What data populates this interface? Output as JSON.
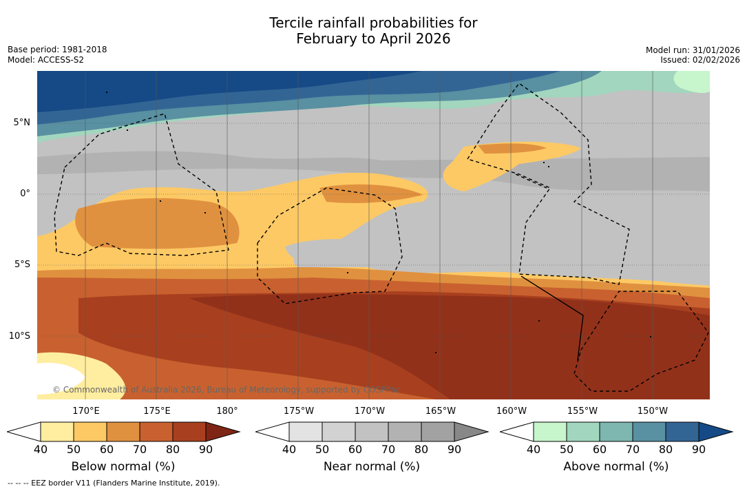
{
  "title": {
    "line1": "Tercile rainfall probabilities for",
    "line2": "February to April 2026"
  },
  "meta": {
    "base_period": "Base period: 1981-2018",
    "model": "Model: ACCESS-S2",
    "model_run": "Model run: 31/01/2026",
    "issued": "Issued: 02/02/2026"
  },
  "map": {
    "latitude_labels": [
      "5°N",
      "0°",
      "5°S",
      "10°S"
    ],
    "longitude_labels": [
      "170°E",
      "175°E",
      "180°",
      "175°W",
      "170°W",
      "165°W",
      "160°W",
      "155°W",
      "150°W"
    ],
    "copyright": "© Commonwealth of Australia 2026, Bureau of Meteorology, supported by COSPPac"
  },
  "colorbars": [
    {
      "title": "Below normal (%)",
      "ticks": [
        "40",
        "50",
        "60",
        "70",
        "80",
        "90"
      ],
      "colors": [
        "#ffeda0",
        "#fdc965",
        "#e0913f",
        "#c8612f",
        "#a8401f",
        "#7f2515"
      ]
    },
    {
      "title": "Near normal (%)",
      "ticks": [
        "40",
        "50",
        "60",
        "70",
        "80",
        "90"
      ],
      "colors": [
        "#e3e3e3",
        "#d2d2d2",
        "#c2c2c2",
        "#b2b2b2",
        "#a2a2a2",
        "#888888"
      ]
    },
    {
      "title": "Above normal (%)",
      "ticks": [
        "40",
        "50",
        "60",
        "70",
        "80",
        "90"
      ],
      "colors": [
        "#c7f5cc",
        "#a2d6be",
        "#7eb6b0",
        "#5990a2",
        "#336594",
        "#154a86"
      ]
    }
  ],
  "footer": "--  --  -- EEZ border V11 (Flanders Marine Institute, 2019)."
}
